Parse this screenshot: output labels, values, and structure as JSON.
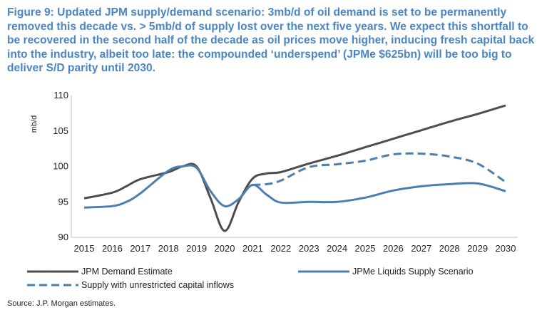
{
  "title": "Figure 9: Updated JPM supply/demand scenario: 3mb/d of oil demand is set to be permanently removed this decade vs. > 5mb/d of supply lost over the next five years. We expect this shortfall to be recovered in the second half of the decade as oil prices move higher, inducing fresh capital back into the industry, albeit too late: the compounded ‘underspend’ (JPMe $625bn) will be too big to deliver S/D parity until 2030.",
  "source": "Source: J.P. Morgan estimates.",
  "colors": {
    "title": "#4a86c4",
    "demand": "#4d4d4d",
    "supply": "#4a7fb0",
    "unrestricted": "#4a7fb0",
    "axis": "#bfbfbf"
  },
  "chart_data": {
    "type": "line",
    "ylabel": "mb/d",
    "xlabel": "",
    "ylim": [
      90,
      110
    ],
    "yticks": [
      90,
      95,
      100,
      105,
      110
    ],
    "categories": [
      "2015",
      "2016",
      "2017",
      "2018",
      "2019",
      "2020",
      "2021",
      "2022",
      "2023",
      "2024",
      "2025",
      "2026",
      "2027",
      "2028",
      "2029",
      "2030"
    ],
    "x": [
      2015,
      2016,
      2017,
      2018,
      2019,
      2020,
      2021,
      2022,
      2023,
      2024,
      2025,
      2026,
      2027,
      2028,
      2029,
      2030
    ],
    "series": [
      {
        "name": "JPM Demand Estimate",
        "style": "solid",
        "color": "#4d4d4d",
        "x": [
          2015,
          2016,
          2016.5,
          2017,
          2018,
          2018.5,
          2019,
          2019.5,
          2020,
          2020.5,
          2021,
          2021.5,
          2022,
          2023,
          2024,
          2025,
          2026,
          2027,
          2028,
          2029,
          2030
        ],
        "values": [
          95.5,
          96.3,
          97.2,
          98.2,
          99.2,
          100.0,
          100.0,
          95.5,
          90.9,
          95.0,
          98.3,
          99.0,
          99.2,
          100.4,
          101.5,
          102.7,
          103.9,
          105.1,
          106.3,
          107.4,
          108.6
        ]
      },
      {
        "name": "JPMe Liquids Supply Scenario",
        "style": "solid",
        "color": "#4a7fb0",
        "x": [
          2015,
          2016,
          2016.5,
          2017,
          2018,
          2018.5,
          2019,
          2019.5,
          2020,
          2020.5,
          2021,
          2021.5,
          2022,
          2023,
          2024,
          2025,
          2026,
          2027,
          2028,
          2029,
          2030
        ],
        "values": [
          94.2,
          94.4,
          95.0,
          96.2,
          99.4,
          100.0,
          99.8,
          96.5,
          94.4,
          95.4,
          97.4,
          96.0,
          94.9,
          95.0,
          95.0,
          95.6,
          96.6,
          97.2,
          97.5,
          97.6,
          96.5
        ]
      },
      {
        "name": "Supply with unrestricted capital inflows",
        "style": "dashed",
        "color": "#4a7fb0",
        "x": [
          2021,
          2021.5,
          2022,
          2023,
          2024,
          2025,
          2026,
          2027,
          2028,
          2029,
          2030
        ],
        "values": [
          97.4,
          97.5,
          98.0,
          99.9,
          100.3,
          100.8,
          101.7,
          101.8,
          101.4,
          100.4,
          97.8
        ]
      }
    ],
    "legend": {
      "placement": "bottom",
      "items": [
        "JPM Demand Estimate",
        "JPMe Liquids Supply Scenario",
        "Supply with unrestricted capital inflows"
      ]
    }
  }
}
